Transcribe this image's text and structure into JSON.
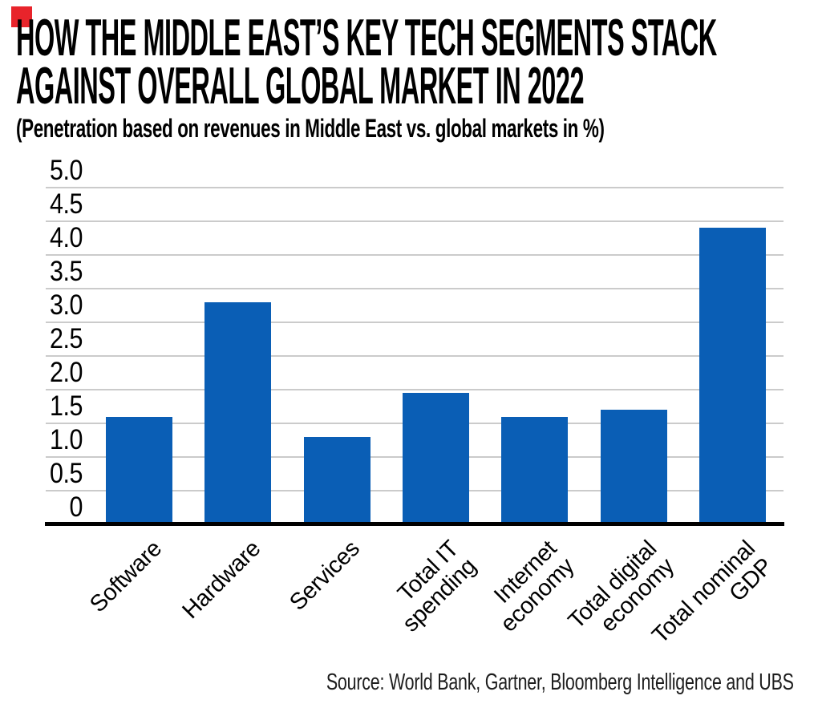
{
  "brand": {
    "mark_color": "#E8242B"
  },
  "chart_data": {
    "type": "bar",
    "title": "HOW THE MIDDLE EAST’S KEY TECH SEGMENTS STACK\nAGAINST OVERALL GLOBAL MARKET IN 2022",
    "subtitle": "(Penetration based on revenues in Middle East vs. global markets in %)",
    "categories": [
      "Software",
      "Hardware",
      "Services",
      "Total IT\nspending",
      "Internet\neconomy",
      "Total digital\neconomy",
      "Total nominal\nGDP"
    ],
    "values": [
      1.6,
      3.3,
      1.3,
      1.95,
      1.6,
      1.7,
      4.4
    ],
    "xlabel": "",
    "ylabel": "",
    "ylim": [
      0,
      5.0
    ],
    "ytick_step": 0.5,
    "yticks": [
      "5.0",
      "4.5",
      "4.0",
      "3.5",
      "3.0",
      "2.5",
      "2.0",
      "1.5",
      "1.0",
      "0.5",
      "0"
    ],
    "grid": true,
    "gridline_color": "#CBCBCB",
    "bar_color": "#0A5EB5",
    "axis_color": "#000000",
    "legend": "none",
    "source": "Source: World Bank, Gartner, Bloomberg Intelligence and UBS"
  }
}
